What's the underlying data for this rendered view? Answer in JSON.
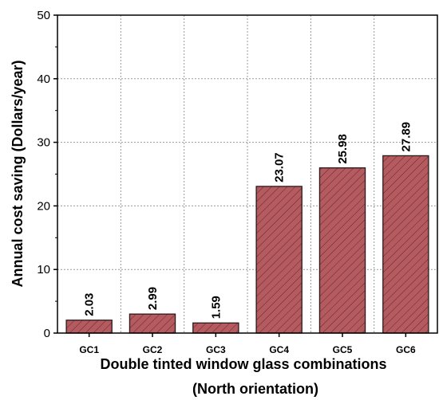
{
  "chart_data": {
    "type": "bar",
    "categories": [
      "GC1",
      "GC2",
      "GC3",
      "GC4",
      "GC5",
      "GC6"
    ],
    "values": [
      2.03,
      2.99,
      1.59,
      23.07,
      25.98,
      27.89
    ],
    "value_labels": [
      "2.03",
      "2.99",
      "1.59",
      "23.07",
      "25.98",
      "27.89"
    ],
    "ylabel": "Annual cost saving (Dollars/year)",
    "xlabel": "Double tinted window glass combinations",
    "xlabel_line2": "(North orientation)",
    "ylim": [
      0,
      50
    ],
    "yticks": [
      "0",
      "10",
      "20",
      "30",
      "40",
      "50"
    ],
    "grid": true,
    "bar_color": "#b55a5f",
    "bar_edge": "#2a1a1a",
    "hatch": "diagonal"
  }
}
